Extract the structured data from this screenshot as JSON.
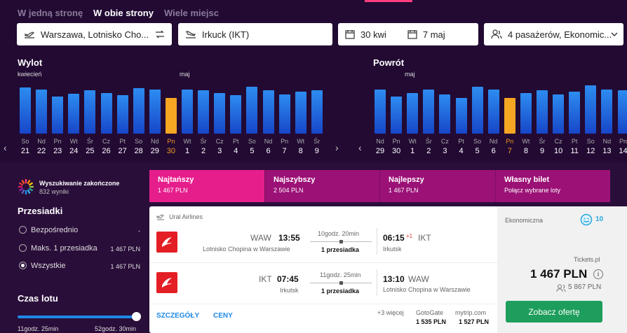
{
  "trip_tabs": [
    "W jedną stronę",
    "W obie strony",
    "Wiele miejsc"
  ],
  "search": {
    "origin": "Warszawa, Lotnisko Cho...",
    "destination": "Irkuck (IKT)",
    "depart_date": "30 kwi",
    "return_date": "7 maj",
    "passengers": "4 pasażerów, Ekonomic..."
  },
  "outbound": {
    "title": "Wylot",
    "month1": "kwiecień",
    "month2": "maj",
    "days": [
      [
        "So",
        "21"
      ],
      [
        "Nd",
        "22"
      ],
      [
        "Pn",
        "23"
      ],
      [
        "Wt",
        "24"
      ],
      [
        "Śr",
        "25"
      ],
      [
        "Cz",
        "26"
      ],
      [
        "Pt",
        "27"
      ],
      [
        "So",
        "28"
      ],
      [
        "Nd",
        "29"
      ],
      [
        "Pn",
        "30"
      ],
      [
        "Wt",
        "1"
      ],
      [
        "Śr",
        "2"
      ],
      [
        "Cz",
        "3"
      ],
      [
        "Pt",
        "4"
      ],
      [
        "So",
        "5"
      ],
      [
        "Nd",
        "6"
      ],
      [
        "Pn",
        "7"
      ],
      [
        "Wt",
        "8"
      ],
      [
        "Śr",
        "9"
      ]
    ],
    "levels": [
      0.75,
      0.72,
      0.6,
      0.65,
      0.7,
      0.66,
      0.62,
      0.74,
      0.72,
      0.58,
      0.72,
      0.7,
      0.66,
      0.62,
      0.76,
      0.71,
      0.64,
      0.68,
      0.7
    ],
    "selected_index": 9
  },
  "inbound": {
    "title": "Powrót",
    "month1": "maj",
    "days": [
      [
        "Nd",
        "29"
      ],
      [
        "Pn",
        "30"
      ],
      [
        "Wt",
        "1"
      ],
      [
        "Śr",
        "2"
      ],
      [
        "Cz",
        "3"
      ],
      [
        "Pt",
        "4"
      ],
      [
        "So",
        "5"
      ],
      [
        "Nd",
        "6"
      ],
      [
        "Pn",
        "7"
      ],
      [
        "Wt",
        "8"
      ],
      [
        "Śr",
        "9"
      ],
      [
        "Cz",
        "10"
      ],
      [
        "Pt",
        "11"
      ],
      [
        "So",
        "12"
      ],
      [
        "Nd",
        "13"
      ],
      [
        "Pn",
        "14"
      ]
    ],
    "levels": [
      0.72,
      0.6,
      0.66,
      0.72,
      0.64,
      0.58,
      0.76,
      0.72,
      0.58,
      0.66,
      0.7,
      0.64,
      0.68,
      0.78,
      0.72,
      0.7
    ],
    "selected_index": 8
  },
  "status": {
    "title": "Wyszukiwanie zakończone",
    "count": "832 wyniki"
  },
  "filters": {
    "stops_title": "Przesiadki",
    "options": [
      {
        "label": "Bezpośrednio",
        "price": "-"
      },
      {
        "label": "Maks. 1 przesiadka",
        "price": "1 467 PLN"
      },
      {
        "label": "Wszystkie",
        "price": "1 467 PLN"
      }
    ],
    "duration_title": "Czas lotu",
    "duration_min": "11godz. 25min",
    "duration_max": "52godz. 30min"
  },
  "sort_tabs": [
    {
      "title": "Najtańszy",
      "value": "1 467 PLN"
    },
    {
      "title": "Najszybszy",
      "value": "2 504 PLN"
    },
    {
      "title": "Najlepszy",
      "value": "1 467 PLN"
    },
    {
      "title": "Własny bilet",
      "value": "Połącz wybrane loty"
    }
  ],
  "result": {
    "airline": "Ural Airlines",
    "leg1": {
      "from_code": "WAW",
      "dep_time": "13:55",
      "from_airport": "Lotnisko Chopina w Warszawie",
      "duration": "10godz. 20min",
      "stops": "1 przesiadka",
      "arr_time": "06:15",
      "day_offset": "+1",
      "to_code": "IKT",
      "to_city": "Irkutsk"
    },
    "leg2": {
      "from_code": "IKT",
      "dep_time": "07:45",
      "from_city": "Irkutsk",
      "duration": "11godz. 25min",
      "stops": "1 przesiadka",
      "arr_time": "13:10",
      "to_code": "WAW",
      "to_airport": "Lotnisko Chopina w Warszawie"
    },
    "details_btn": "SZCZEGÓŁY",
    "prices_btn": "CENY",
    "more": "+3 więcej",
    "vendor1": "GotoGate",
    "vendor1_price": "1 535 PLN",
    "vendor2": "mytrip.com",
    "vendor2_price": "1 527 PLN",
    "cabin": "Ekonomiczna",
    "rating": "10",
    "seller": "Tickets.pl",
    "price": "1 467 PLN",
    "total": "5 867 PLN",
    "offer_btn": "Zobacz ofertę"
  },
  "colors": {
    "bar_blue": "#1f7ae0",
    "bar_selected": "#f5a623",
    "cheapest_tab": "#e61e8c",
    "other_tab": "#9b1176",
    "offer_green": "#1e9e5c"
  }
}
